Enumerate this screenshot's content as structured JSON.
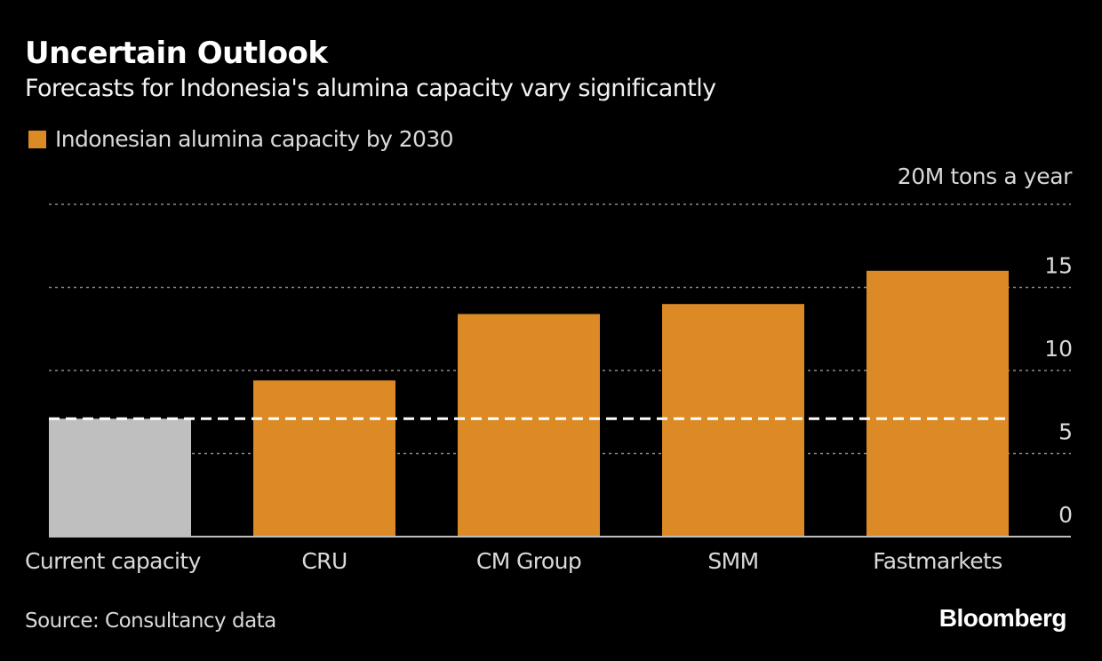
{
  "header": {
    "title": "Uncertain Outlook",
    "subtitle": "Forecasts for Indonesia's alumina capacity vary significantly"
  },
  "footer": {
    "source": "Source: Consultancy data",
    "brand": "Bloomberg"
  },
  "chart_data": {
    "type": "bar",
    "title": "Uncertain Outlook",
    "subtitle": "Forecasts for Indonesia's alumina capacity vary significantly",
    "categories": [
      "Current capacity",
      "CRU",
      "CM Group",
      "SMM",
      "Fastmarkets"
    ],
    "series": [
      {
        "name": "Indonesian alumina capacity by 2030",
        "color": "#DB8A25",
        "values": [
          7.1,
          9.4,
          13.4,
          14.0,
          16.0
        ]
      }
    ],
    "bar_colors": [
      "#BFBFBF",
      "#DB8A25",
      "#DB8A25",
      "#DB8A25",
      "#DB8A25"
    ],
    "reference_line": {
      "label": "Current capacity",
      "value": 7.1,
      "style": "dashed",
      "color": "#FFFFFF"
    },
    "legend": {
      "entries": [
        "Indonesian alumina capacity by 2030"
      ],
      "placement": "top-left"
    },
    "xlabel": "",
    "ylabel": "",
    "unit_label": "20M tons a year",
    "yticks": [
      0,
      5,
      10,
      15,
      20
    ],
    "ytick_labels": [
      "0",
      "5",
      "10",
      "15",
      "20M tons a year"
    ],
    "ylim": [
      0,
      20
    ],
    "y_axis_side": "right",
    "grid": true,
    "source": "Source: Consultancy data"
  }
}
